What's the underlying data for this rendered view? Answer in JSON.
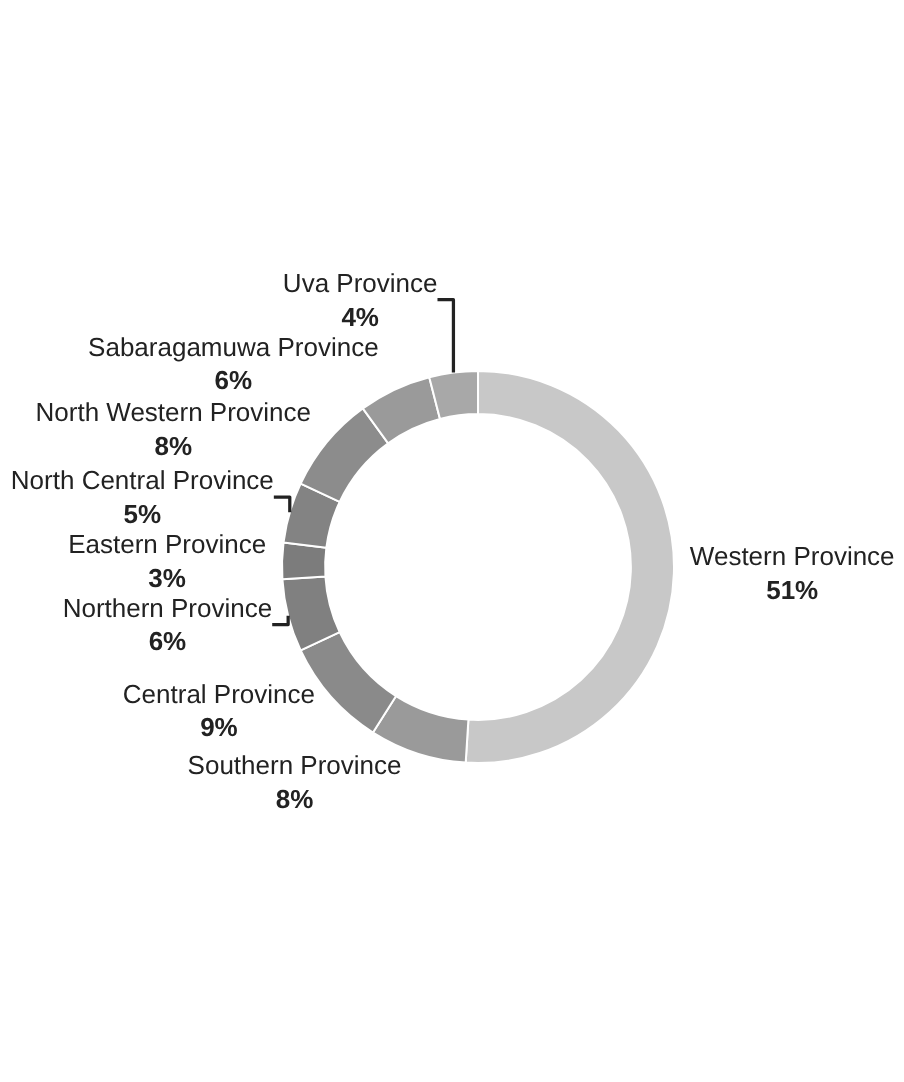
{
  "chart_data": {
    "type": "donut",
    "categories": [
      "Western Province",
      "Southern Province",
      "Central Province",
      "Northern Province",
      "Eastern Province",
      "North Central Province",
      "North Western Province",
      "Sabaragamuwa Province",
      "Uva Province"
    ],
    "values": [
      51,
      8,
      9,
      6,
      3,
      5,
      8,
      6,
      4
    ],
    "colors": [
      "#c8c8c8",
      "#9a9a9a",
      "#8a8a8a",
      "#808080",
      "#7c7c7c",
      "#838383",
      "#8c8c8c",
      "#9a9a9a",
      "#a8a8a8"
    ],
    "value_labels": [
      "51%",
      "8%",
      "9%",
      "6%",
      "3%",
      "5%",
      "8%",
      "6%",
      "4%"
    ],
    "legend": false
  }
}
